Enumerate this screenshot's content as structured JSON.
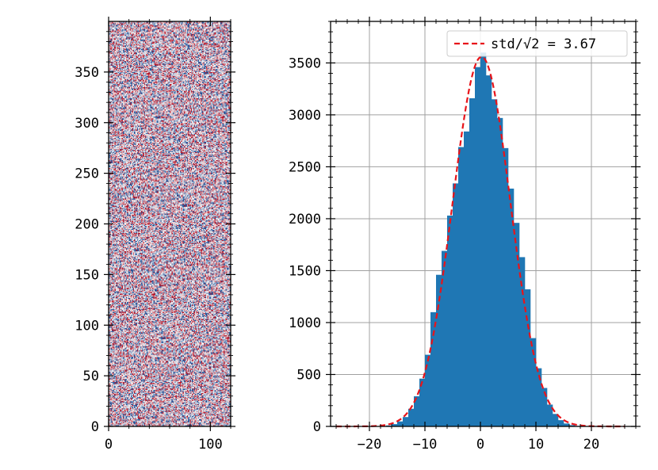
{
  "chart_data": [
    {
      "type": "heatmap",
      "title": "",
      "xlabel": "",
      "ylabel": "",
      "rows": 400,
      "cols": 120,
      "xlim": [
        0,
        120
      ],
      "ylim": [
        0,
        400
      ],
      "x_ticks": [
        0,
        100
      ],
      "y_ticks": [
        0,
        50,
        100,
        150,
        200,
        250,
        300,
        350
      ],
      "x_tick_labels": [
        "0",
        "100"
      ],
      "y_tick_labels": [
        "0",
        "50",
        "100",
        "150",
        "200",
        "250",
        "300",
        "350"
      ],
      "colormap": "RdBu diverging (random noise)",
      "colors": {
        "negative": "#2a5d9f",
        "neutral": "#f7f7f7",
        "positive": "#b2182b"
      },
      "grid": false
    },
    {
      "type": "bar",
      "subtype": "histogram",
      "title": "",
      "xlabel": "",
      "ylabel": "",
      "xlim": [
        -27,
        28
      ],
      "ylim": [
        0,
        3900
      ],
      "bin_width": 1,
      "x_ticks": [
        -20,
        -10,
        0,
        10,
        20
      ],
      "y_ticks": [
        0,
        500,
        1000,
        1500,
        2000,
        2500,
        3000,
        3500
      ],
      "x_tick_labels": [
        "−20",
        "−10",
        "0",
        "10",
        "20"
      ],
      "y_tick_labels": [
        "0",
        "500",
        "1000",
        "1500",
        "2000",
        "2500",
        "3000",
        "3500"
      ],
      "bins": [
        {
          "center": -17.5,
          "count": 4
        },
        {
          "center": -16.5,
          "count": 9
        },
        {
          "center": -15.5,
          "count": 22
        },
        {
          "center": -14.5,
          "count": 48
        },
        {
          "center": -13.5,
          "count": 90
        },
        {
          "center": -12.5,
          "count": 170
        },
        {
          "center": -11.5,
          "count": 290
        },
        {
          "center": -10.5,
          "count": 460
        },
        {
          "center": -9.5,
          "count": 690
        },
        {
          "center": -8.5,
          "count": 1100
        },
        {
          "center": -7.5,
          "count": 1460
        },
        {
          "center": -6.5,
          "count": 1690
        },
        {
          "center": -5.5,
          "count": 2030
        },
        {
          "center": -4.5,
          "count": 2340
        },
        {
          "center": -3.5,
          "count": 2690
        },
        {
          "center": -2.5,
          "count": 2840
        },
        {
          "center": -1.5,
          "count": 3160
        },
        {
          "center": -0.5,
          "count": 3460
        },
        {
          "center": 0.5,
          "count": 3600
        },
        {
          "center": 1.5,
          "count": 3380
        },
        {
          "center": 2.5,
          "count": 3150
        },
        {
          "center": 3.5,
          "count": 2970
        },
        {
          "center": 4.5,
          "count": 2680
        },
        {
          "center": 5.5,
          "count": 2290
        },
        {
          "center": 6.5,
          "count": 1960
        },
        {
          "center": 7.5,
          "count": 1630
        },
        {
          "center": 8.5,
          "count": 1320
        },
        {
          "center": 9.5,
          "count": 850
        },
        {
          "center": 10.5,
          "count": 560
        },
        {
          "center": 11.5,
          "count": 370
        },
        {
          "center": 12.5,
          "count": 210
        },
        {
          "center": 13.5,
          "count": 120
        },
        {
          "center": 14.5,
          "count": 60
        },
        {
          "center": 15.5,
          "count": 28
        },
        {
          "center": 16.5,
          "count": 12
        },
        {
          "center": 17.5,
          "count": 5
        }
      ],
      "fit_curve": {
        "name": "std/√2 = 3.67",
        "type": "gaussian",
        "mean": 0.2,
        "sigma": 5.2,
        "peak": 3560,
        "x_range": [
          -26,
          26
        ],
        "color": "#e8141a",
        "style": "dashed"
      },
      "bar_color": "#1f77b4",
      "grid": true,
      "legend": {
        "placement": "upper-right",
        "entries": [
          "std/√2 = 3.67"
        ]
      }
    }
  ]
}
